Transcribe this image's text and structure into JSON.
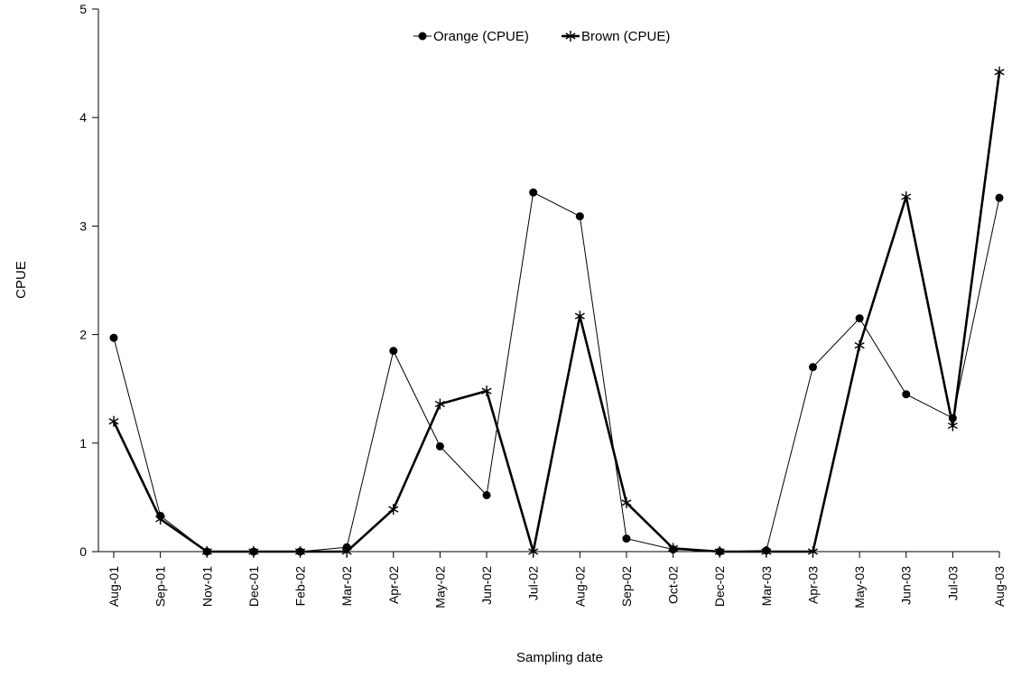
{
  "chart_data": {
    "type": "line",
    "title": "",
    "xlabel": "Sampling date",
    "ylabel": "CPUE",
    "ylim": [
      0,
      5
    ],
    "yticks": [
      0,
      1,
      2,
      3,
      4,
      5
    ],
    "grid": false,
    "legend_position": "top-center",
    "categories": [
      "Aug-01",
      "Sep-01",
      "Nov-01",
      "Dec-01",
      "Feb-02",
      "Mar-02",
      "Apr-02",
      "May-02",
      "Jun-02",
      "Jul-02",
      "Aug-02",
      "Sep-02",
      "Oct-02",
      "Dec-02",
      "Mar-03",
      "Apr-03",
      "May-03",
      "Jun-03",
      "Jul-03",
      "Aug-03"
    ],
    "series": [
      {
        "name": "Orange (CPUE)",
        "marker": "circle",
        "color": "#000000",
        "values": [
          1.97,
          0.33,
          0.0,
          0.0,
          0.0,
          0.04,
          1.85,
          0.97,
          0.52,
          3.31,
          3.09,
          0.12,
          0.02,
          0.0,
          0.01,
          1.7,
          2.15,
          1.45,
          1.23,
          3.26
        ]
      },
      {
        "name": "Brown (CPUE)",
        "marker": "star",
        "color": "#000000",
        "values": [
          1.2,
          0.3,
          0.0,
          0.0,
          0.0,
          0.0,
          0.39,
          1.36,
          1.48,
          0.0,
          2.17,
          0.45,
          0.03,
          0.0,
          0.0,
          0.0,
          1.9,
          3.27,
          1.16,
          4.42
        ]
      }
    ]
  }
}
